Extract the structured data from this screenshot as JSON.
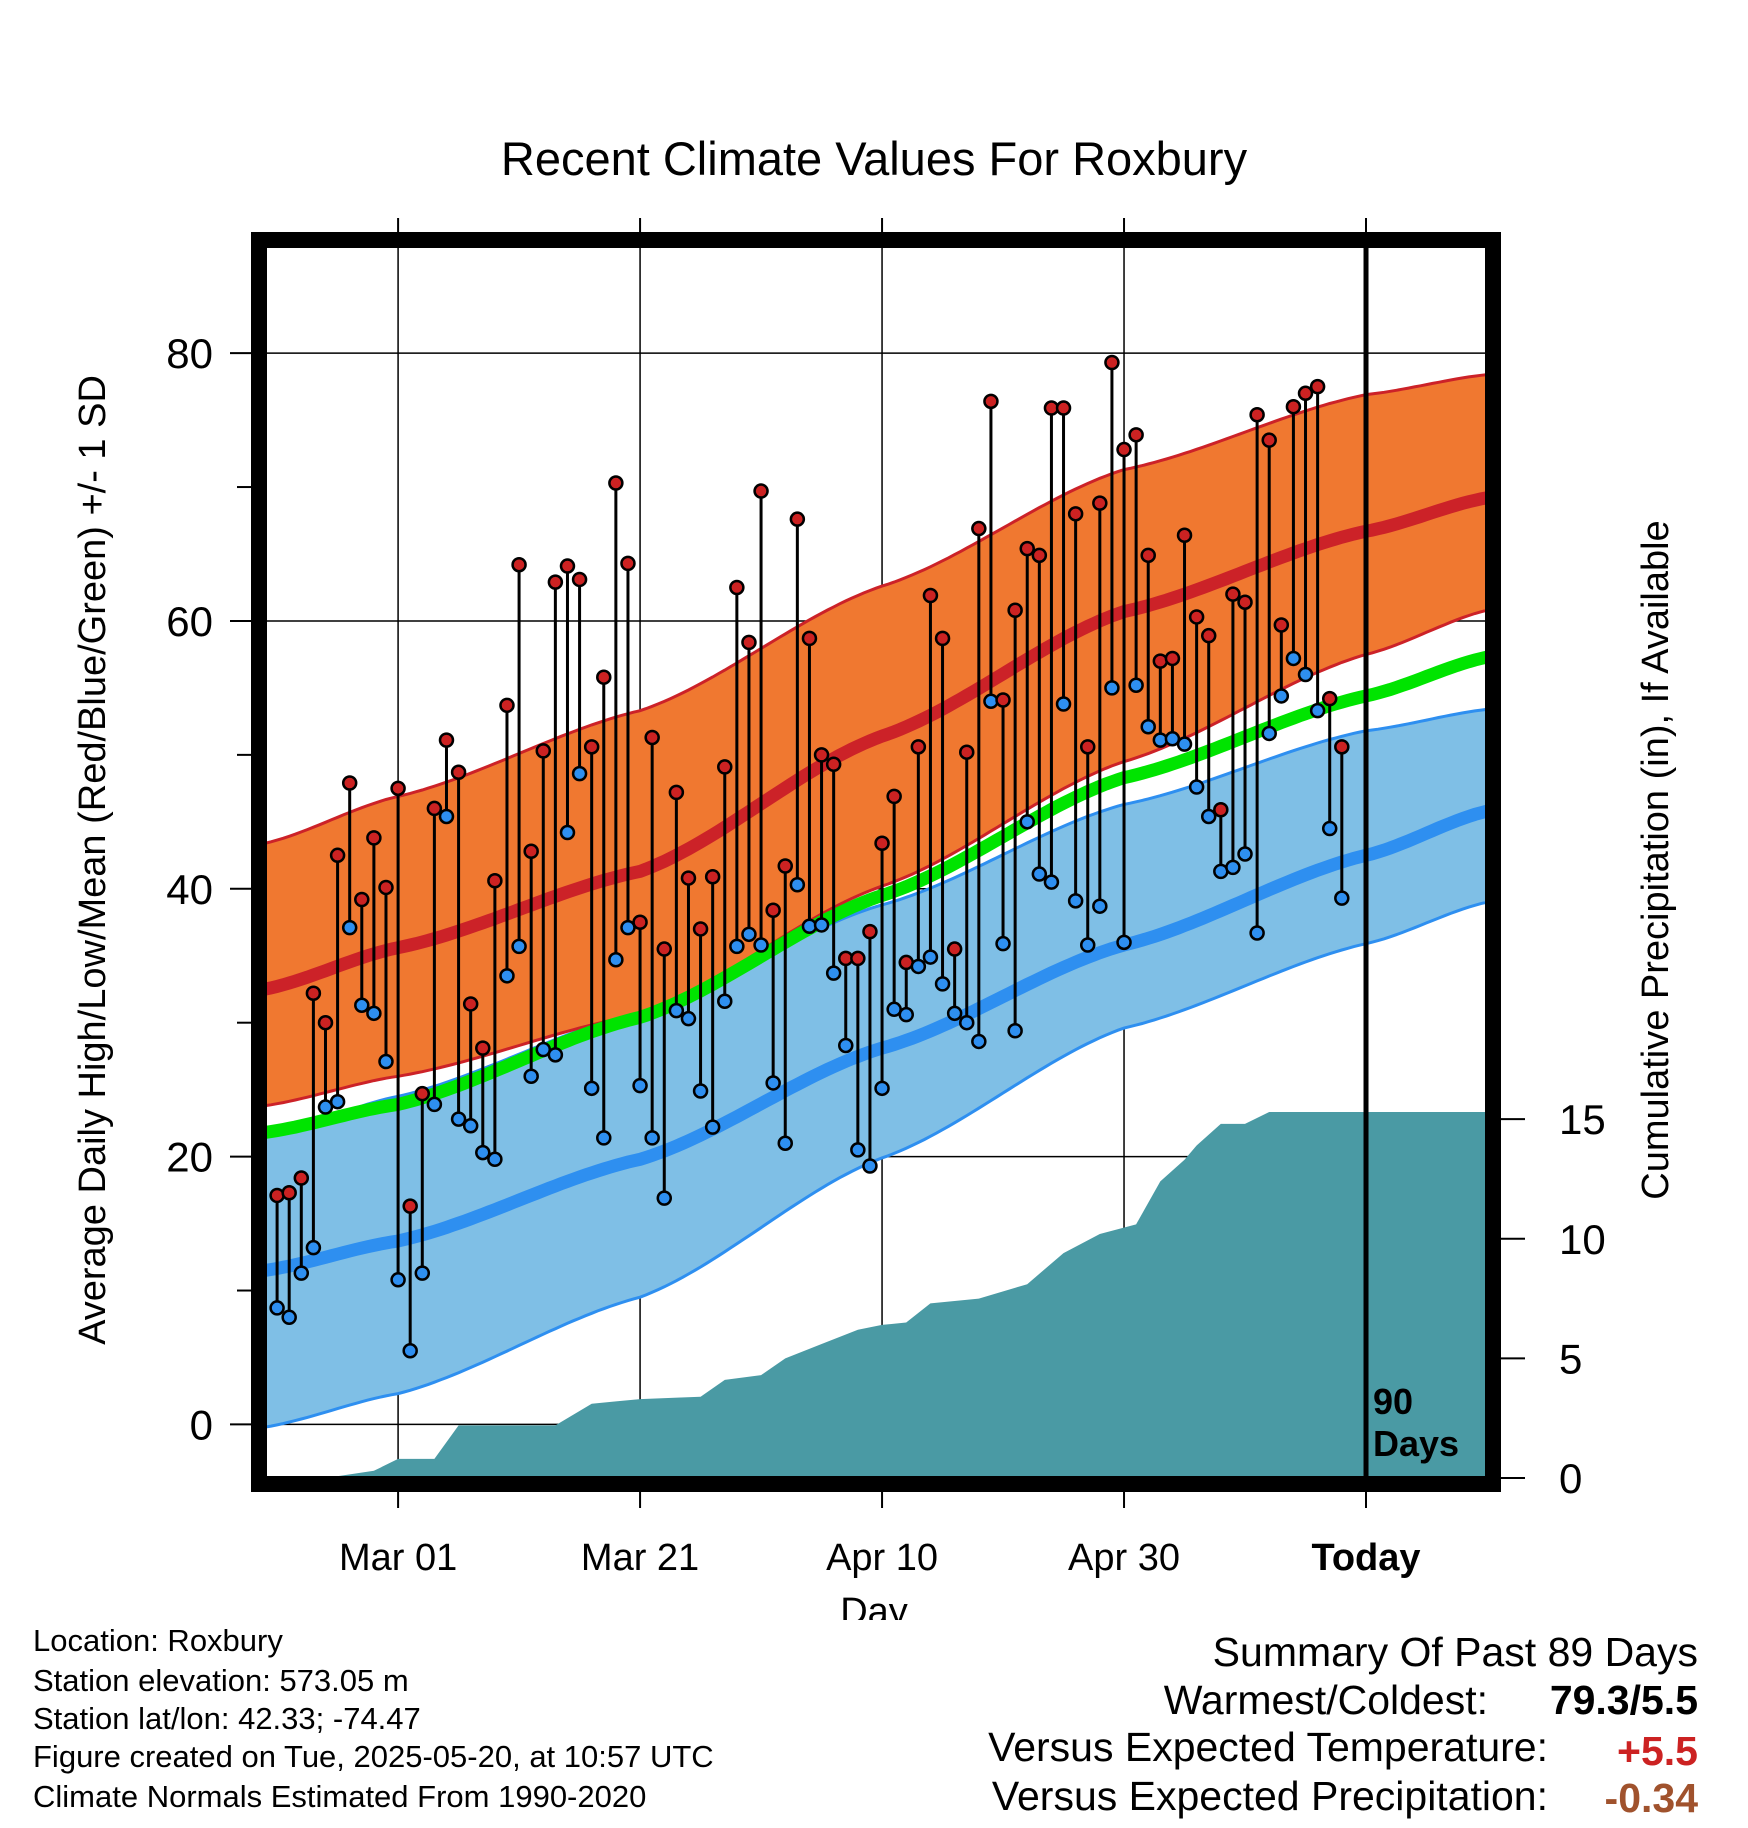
{
  "chart_data": {
    "type": "line",
    "title": "Recent Climate Values For Roxbury",
    "xlabel": "Day",
    "ylabel": "Average Daily High/Low/Mean (Red/Blue/Green) +/- 1 SD",
    "y2label": "Cumulative Precipitation (in), If Available",
    "ylim": [
      -4,
      88
    ],
    "y2lim": [
      0,
      51.5
    ],
    "y_ticks": [
      0,
      20,
      40,
      60,
      80
    ],
    "y2_ticks": [
      0,
      5,
      10,
      15
    ],
    "x_ticks": [
      {
        "day": 10,
        "label": "Mar 01"
      },
      {
        "day": 30,
        "label": "Mar 21"
      },
      {
        "day": 50,
        "label": "Apr 10"
      },
      {
        "day": 70,
        "label": "Apr 30"
      },
      {
        "day": 90,
        "label": "Today"
      }
    ],
    "xlim": [
      -1,
      100
    ],
    "today_day": 90,
    "today_label_line1": "90",
    "today_label_line2": "Days",
    "grid": true,
    "normals": {
      "days": [
        -1,
        10,
        30,
        50,
        70,
        90,
        100
      ],
      "high_mean": [
        32.5,
        35.6,
        41.3,
        51.4,
        60.7,
        66.7,
        69.2
      ],
      "high_upper": [
        43.4,
        46.9,
        53.3,
        62.6,
        71.3,
        76.9,
        78.4
      ],
      "high_lower": [
        23.8,
        26,
        30.6,
        40.2,
        49.5,
        57.5,
        60.8
      ],
      "mean_mean": [
        21.8,
        23.9,
        30.4,
        39.5,
        48.3,
        54.4,
        57.3
      ],
      "low_mean": [
        11.5,
        13.7,
        19.8,
        28.1,
        35.8,
        42.5,
        45.8
      ],
      "low_upper": [
        21.5,
        24.5,
        30.8,
        38.8,
        46.3,
        51.8,
        53.4
      ],
      "low_lower": [
        -0.2,
        2.3,
        9.5,
        19.9,
        29.6,
        35.9,
        39
      ]
    },
    "series": [
      {
        "name": "High",
        "values": [
          17.1,
          17.3,
          18.4,
          32.2,
          30,
          42.5,
          47.9,
          39.2,
          43.8,
          40.1,
          47.5,
          16.3,
          24.7,
          46,
          51.1,
          48.7,
          31.4,
          28.1,
          40.6,
          53.7,
          64.2,
          42.8,
          50.3,
          62.9,
          64.1,
          63.1,
          50.6,
          55.8,
          70.3,
          64.3,
          37.5,
          51.3,
          35.5,
          47.2,
          40.8,
          37,
          40.9,
          49.1,
          62.5,
          58.4,
          69.7,
          38.4,
          41.7,
          67.6,
          58.7,
          50,
          49.3,
          34.8,
          34.8,
          36.8,
          43.4,
          46.9,
          34.5,
          50.6,
          61.9,
          58.7,
          35.5,
          50.2,
          66.9,
          76.4,
          54.1,
          60.8,
          65.4,
          64.9,
          75.9,
          75.9,
          68,
          50.6,
          68.8,
          79.3,
          72.8,
          73.9,
          64.9,
          57,
          57.2,
          66.4,
          60.3,
          58.9,
          45.9,
          62,
          61.4,
          75.4,
          73.5,
          59.7,
          76,
          77,
          77.5,
          54.2,
          50.6
        ],
        "color": "#cc2222"
      },
      {
        "name": "Low",
        "values": [
          8.7,
          8,
          11.3,
          13.2,
          23.7,
          24.1,
          37.1,
          31.3,
          30.7,
          27.1,
          10.8,
          5.5,
          11.3,
          23.9,
          45.4,
          22.8,
          22.3,
          20.3,
          19.8,
          33.5,
          35.7,
          26,
          28,
          27.6,
          44.2,
          48.6,
          25.1,
          21.4,
          34.7,
          37.1,
          25.3,
          21.4,
          16.9,
          30.9,
          30.3,
          24.9,
          22.2,
          31.6,
          35.7,
          36.6,
          35.8,
          25.5,
          21,
          40.3,
          37.2,
          37.3,
          33.7,
          28.3,
          20.5,
          19.3,
          25.1,
          31,
          30.6,
          34.2,
          34.9,
          32.9,
          30.7,
          30,
          28.6,
          54,
          35.9,
          29.4,
          45,
          41.1,
          40.5,
          53.8,
          39.1,
          35.8,
          38.7,
          55,
          36,
          55.2,
          52.1,
          51.1,
          51.2,
          50.8,
          47.6,
          45.4,
          41.3,
          41.6,
          42.6,
          36.7,
          51.6,
          54.4,
          57.2,
          56,
          53.3,
          44.5,
          39.3
        ],
        "color": "#3399ee"
      }
    ],
    "precip": {
      "name": "Cumulative Precipitation",
      "days": [
        -1,
        4,
        8,
        10,
        13,
        15,
        18,
        20,
        23,
        26,
        28,
        30,
        35,
        37,
        40,
        42,
        45,
        47,
        48,
        50,
        52,
        54,
        58,
        62,
        65,
        68,
        71,
        73,
        75,
        76,
        78,
        80,
        82,
        84,
        86,
        88,
        89,
        100
      ],
      "values": [
        0,
        0,
        0.3,
        0.8,
        0.8,
        2.2,
        2.2,
        2.2,
        2.2,
        3.1,
        3.2,
        3.3,
        3.4,
        4.1,
        4.3,
        5,
        5.6,
        6,
        6.2,
        6.4,
        6.5,
        7.3,
        7.5,
        8.1,
        9.4,
        10.2,
        10.6,
        12.4,
        13.3,
        13.9,
        14.8,
        14.8,
        15.3,
        15.3,
        15.3,
        15.3,
        15.3,
        15.3
      ],
      "color": "#4a9aa4"
    },
    "colors": {
      "high_band": "#f07830",
      "high_line": "#cc2228",
      "low_band": "#7fbfe6",
      "low_line": "#2e8ff0",
      "mean_line": "#00e400",
      "precip": "#4a9aa4",
      "summary_red": "#cc2222",
      "summary_brown": "#a0522d"
    }
  },
  "info": {
    "location": "Location: Roxbury",
    "elevation": "Station elevation: 573.05 m",
    "latlon": "Station lat/lon: 42.33; -74.47",
    "created": "Figure created on Tue, 2025-05-20, at 10:57 UTC",
    "normals": "Climate Normals Estimated From 1990-2020"
  },
  "summary": {
    "title": "Summary Of Past 89 Days",
    "warmest_coldest_label": "Warmest/Coldest:",
    "warmest_coldest_value": "79.3/5.5",
    "temp_label": "Versus Expected Temperature:",
    "temp_value": "+5.5",
    "precip_label": "Versus Expected Precipitation:",
    "precip_value": "-0.34"
  }
}
